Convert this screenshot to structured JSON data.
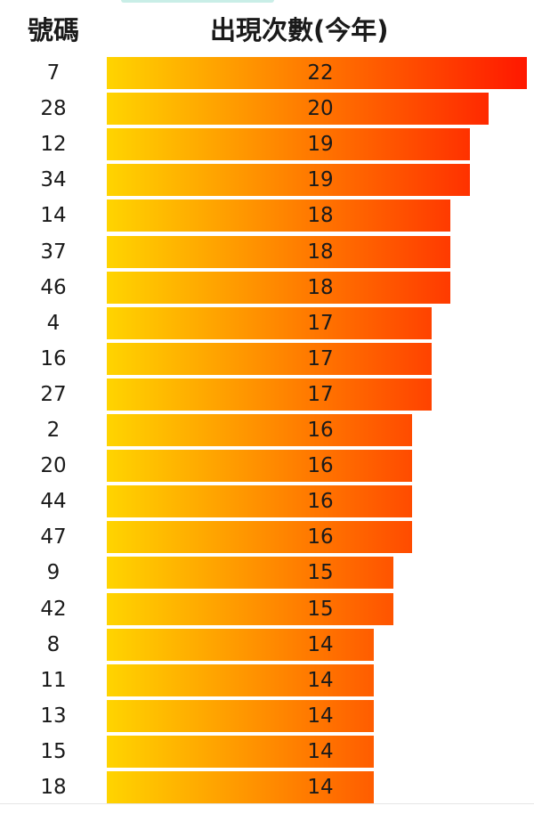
{
  "header": {
    "number_label": "號碼",
    "count_label": "出現次數(今年)"
  },
  "colors": {
    "gradient_start": "#ffd400",
    "gradient_end": "#ff1800",
    "text": "#1a1a1a"
  },
  "chart_data": {
    "type": "bar",
    "orientation": "horizontal",
    "xlim": [
      0,
      22
    ],
    "categories": [
      "7",
      "28",
      "12",
      "34",
      "14",
      "37",
      "46",
      "4",
      "16",
      "27",
      "2",
      "20",
      "44",
      "47",
      "9",
      "42",
      "8",
      "11",
      "13",
      "15",
      "18"
    ],
    "values": [
      22,
      20,
      19,
      19,
      18,
      18,
      18,
      17,
      17,
      17,
      16,
      16,
      16,
      16,
      15,
      15,
      14,
      14,
      14,
      14,
      14
    ]
  }
}
